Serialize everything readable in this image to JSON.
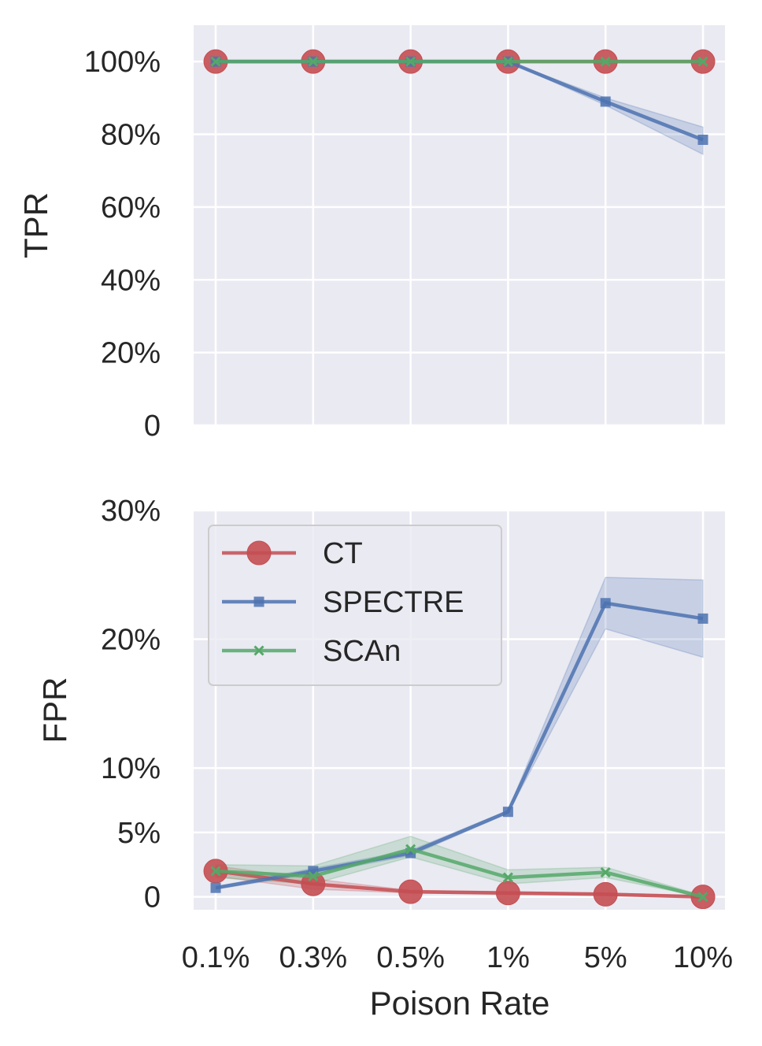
{
  "chart_data": [
    {
      "type": "line",
      "ylabel": "TPR",
      "xlabel": "",
      "categories": [
        "0.1%",
        "0.3%",
        "0.5%",
        "1%",
        "5%",
        "10%"
      ],
      "ylim": [
        0,
        1.1
      ],
      "yticks": [
        0,
        0.2,
        0.4,
        0.6,
        0.8,
        1.0
      ],
      "ytick_labels": [
        "0",
        "20%",
        "40%",
        "60%",
        "80%",
        "100%"
      ],
      "grid": true,
      "series": [
        {
          "name": "CT",
          "color": "#c44e52",
          "marker": "circle",
          "values": [
            1.0,
            1.0,
            1.0,
            1.0,
            1.0,
            1.0
          ]
        },
        {
          "name": "SPECTRE",
          "color": "#4c72b0",
          "marker": "square",
          "values": [
            1.0,
            1.0,
            1.0,
            1.0,
            0.89,
            0.785
          ],
          "band_low": [
            1.0,
            1.0,
            1.0,
            1.0,
            0.88,
            0.745
          ],
          "band_high": [
            1.0,
            1.0,
            1.0,
            1.0,
            0.9,
            0.82
          ]
        },
        {
          "name": "SCAn",
          "color": "#55a868",
          "marker": "x",
          "values": [
            1.0,
            1.0,
            1.0,
            1.0,
            1.0,
            1.0
          ]
        }
      ]
    },
    {
      "type": "line",
      "ylabel": "FPR",
      "xlabel": "Poison Rate",
      "categories": [
        "0.1%",
        "0.3%",
        "0.5%",
        "1%",
        "5%",
        "10%"
      ],
      "ylim": [
        -0.01,
        0.3
      ],
      "yticks": [
        0,
        0.05,
        0.1,
        0.2,
        0.3
      ],
      "ytick_labels": [
        "0",
        "5%",
        "10%",
        "20%",
        "30%"
      ],
      "grid": true,
      "legend": "top-left",
      "series": [
        {
          "name": "CT",
          "color": "#c44e52",
          "marker": "circle",
          "values": [
            0.02,
            0.01,
            0.004,
            0.003,
            0.002,
            0.0
          ],
          "band_low": [
            0.016,
            0.006,
            0.003,
            0.002,
            0.001,
            0.0
          ],
          "band_high": [
            0.024,
            0.014,
            0.005,
            0.004,
            0.003,
            0.001
          ]
        },
        {
          "name": "SPECTRE",
          "color": "#4c72b0",
          "marker": "square",
          "values": [
            0.007,
            0.02,
            0.034,
            0.066,
            0.228,
            0.216
          ],
          "band_low": [
            0.006,
            0.018,
            0.032,
            0.065,
            0.208,
            0.186
          ],
          "band_high": [
            0.008,
            0.022,
            0.036,
            0.067,
            0.248,
            0.246
          ]
        },
        {
          "name": "SCAn",
          "color": "#55a868",
          "marker": "x",
          "values": [
            0.02,
            0.016,
            0.037,
            0.015,
            0.019,
            0.0
          ],
          "band_low": [
            0.015,
            0.01,
            0.031,
            0.01,
            0.015,
            0.0
          ],
          "band_high": [
            0.025,
            0.024,
            0.047,
            0.021,
            0.023,
            0.001
          ]
        }
      ]
    }
  ]
}
